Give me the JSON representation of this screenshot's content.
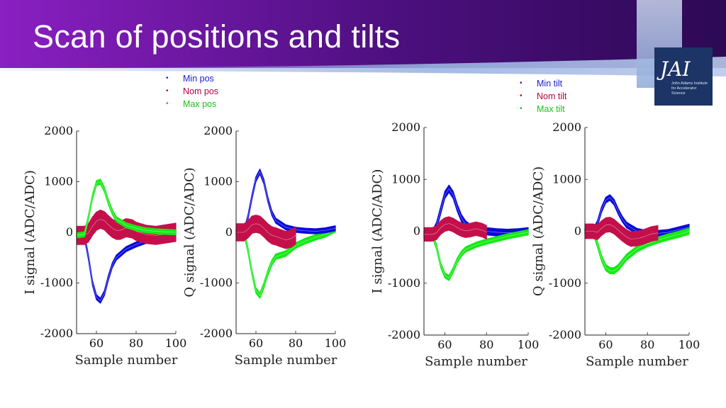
{
  "title": "Scan of positions and tilts",
  "logo": {
    "mark": "JAI",
    "text": "John Adams Institute for Accelerator Science"
  },
  "legends": {
    "positions": [
      {
        "label": "Min pos",
        "color": "#1a1ad6"
      },
      {
        "label": "Nom pos",
        "color": "#b00048"
      },
      {
        "label": "Max pos",
        "color": "#17c417"
      }
    ],
    "tilts": [
      {
        "label": "Min tilt",
        "color": "#1a1ad6"
      },
      {
        "label": "Nom tilt",
        "color": "#b00048"
      },
      {
        "label": "Max tilt",
        "color": "#17c417"
      }
    ]
  },
  "colors": {
    "min": "#0a0ad9",
    "nom": "#c4104a",
    "max": "#16ea16",
    "banner_start": "#3a0a6a",
    "banner_end": "#7a2aa0"
  },
  "chart_data": [
    {
      "type": "line",
      "xlabel": "Sample number",
      "ylabel": "I signal (ADC/ADC)",
      "xlim": [
        50,
        100
      ],
      "ylim": [
        -2000,
        2000
      ],
      "xticks": [
        "60",
        "80",
        "100"
      ],
      "yticks": [
        "2000",
        "1000",
        "0",
        "-1000",
        "-2000"
      ],
      "series": [
        {
          "name": "Min pos",
          "color": "#0a0ad9",
          "x": [
            50,
            54,
            56,
            58,
            60,
            62,
            64,
            66,
            68,
            70,
            75,
            80,
            85,
            90,
            95,
            100
          ],
          "y": [
            -60,
            -80,
            -500,
            -1000,
            -1280,
            -1350,
            -1200,
            -900,
            -650,
            -500,
            -330,
            -240,
            -170,
            -120,
            -70,
            0
          ],
          "spread": 50
        },
        {
          "name": "Nom pos",
          "color": "#c4104a",
          "x": [
            50,
            54,
            56,
            58,
            60,
            62,
            64,
            66,
            68,
            70,
            72,
            75,
            78,
            80,
            85,
            90,
            95,
            100
          ],
          "y": [
            -60,
            -60,
            -10,
            120,
            220,
            260,
            230,
            150,
            80,
            40,
            40,
            90,
            70,
            20,
            -40,
            -60,
            -30,
            0
          ],
          "spread": 180
        },
        {
          "name": "Max pos",
          "color": "#16ea16",
          "x": [
            50,
            54,
            56,
            58,
            60,
            62,
            64,
            66,
            68,
            70,
            75,
            80,
            85,
            90,
            95,
            100
          ],
          "y": [
            -60,
            -40,
            300,
            700,
            970,
            1000,
            850,
            600,
            400,
            260,
            140,
            80,
            40,
            20,
            10,
            0
          ],
          "spread": 50
        }
      ]
    },
    {
      "type": "line",
      "xlabel": "Sample number",
      "ylabel": "Q signal (ADC/ADC)",
      "xlim": [
        50,
        100
      ],
      "ylim": [
        -2000,
        2000
      ],
      "xticks": [
        "60",
        "80",
        "100"
      ],
      "yticks": [
        "2000",
        "1000",
        "0",
        "-1000",
        "-2000"
      ],
      "series": [
        {
          "name": "Max pos",
          "color": "#16ea16",
          "x": [
            50,
            54,
            56,
            58,
            60,
            62,
            64,
            66,
            68,
            70,
            75,
            80,
            85,
            90,
            95,
            100
          ],
          "y": [
            0,
            0,
            -350,
            -800,
            -1150,
            -1250,
            -1050,
            -800,
            -600,
            -480,
            -420,
            -260,
            -170,
            -100,
            -40,
            60
          ],
          "spread": 55
        },
        {
          "name": "Min pos",
          "color": "#0a0ad9",
          "x": [
            50,
            54,
            56,
            58,
            60,
            62,
            64,
            66,
            68,
            70,
            75,
            80,
            85,
            90,
            95,
            100
          ],
          "y": [
            0,
            0,
            300,
            700,
            1050,
            1200,
            1000,
            650,
            380,
            230,
            100,
            50,
            30,
            20,
            40,
            80
          ],
          "spread": 50
        },
        {
          "name": "Nom pos",
          "color": "#c4104a",
          "x": [
            50,
            54,
            56,
            58,
            60,
            62,
            64,
            66,
            68,
            70,
            72,
            75,
            78,
            80
          ],
          "y": [
            0,
            0,
            60,
            150,
            170,
            150,
            80,
            0,
            -60,
            -80,
            -110,
            -150,
            -120,
            -60
          ],
          "spread": 170
        }
      ]
    },
    {
      "type": "line",
      "xlabel": "Sample number",
      "ylabel": "I signal (ADC/ADC)",
      "xlim": [
        50,
        100
      ],
      "ylim": [
        -2000,
        2000
      ],
      "xticks": [
        "60",
        "80",
        "100"
      ],
      "yticks": [
        "2000",
        "1000",
        "0",
        "-1000",
        "-2000"
      ],
      "series": [
        {
          "name": "Min tilt",
          "color": "#0a0ad9",
          "x": [
            50,
            54,
            56,
            58,
            60,
            62,
            64,
            66,
            68,
            70,
            72,
            75,
            78,
            80,
            85,
            90,
            95,
            100
          ],
          "y": [
            -60,
            -60,
            100,
            400,
            700,
            820,
            700,
            450,
            250,
            130,
            70,
            60,
            30,
            0,
            -20,
            -30,
            -20,
            0
          ],
          "spread": 70
        },
        {
          "name": "Max tilt",
          "color": "#16ea16",
          "x": [
            50,
            54,
            56,
            58,
            60,
            62,
            64,
            66,
            68,
            70,
            75,
            80,
            85,
            90,
            95,
            100
          ],
          "y": [
            -60,
            -60,
            -300,
            -650,
            -850,
            -900,
            -750,
            -560,
            -430,
            -350,
            -260,
            -200,
            -150,
            -100,
            -60,
            -20
          ],
          "spread": 50
        },
        {
          "name": "Nom tilt",
          "color": "#c4104a",
          "x": [
            50,
            54,
            56,
            58,
            60,
            62,
            64,
            66,
            68,
            70,
            72,
            75,
            78,
            80
          ],
          "y": [
            -60,
            -60,
            -30,
            70,
            130,
            150,
            120,
            70,
            30,
            10,
            20,
            50,
            20,
            -20
          ],
          "spread": 130
        }
      ]
    },
    {
      "type": "line",
      "xlabel": "Sample number",
      "ylabel": "Q signal (ADC/ADC)",
      "xlim": [
        50,
        100
      ],
      "ylim": [
        -2000,
        2000
      ],
      "xticks": [
        "60",
        "80",
        "100"
      ],
      "yticks": [
        "2000",
        "1000",
        "0",
        "-1000",
        "-2000"
      ],
      "series": [
        {
          "name": "Min tilt",
          "color": "#0a0ad9",
          "x": [
            50,
            54,
            56,
            58,
            60,
            62,
            64,
            66,
            68,
            70,
            75,
            80,
            85,
            90,
            95,
            100
          ],
          "y": [
            0,
            0,
            150,
            420,
            600,
            650,
            560,
            380,
            230,
            120,
            0,
            -40,
            -40,
            -20,
            30,
            80
          ],
          "spread": 55
        },
        {
          "name": "Max tilt",
          "color": "#16ea16",
          "x": [
            50,
            54,
            56,
            58,
            60,
            62,
            64,
            66,
            68,
            70,
            75,
            80,
            85,
            90,
            95,
            100
          ],
          "y": [
            0,
            0,
            -250,
            -520,
            -700,
            -760,
            -760,
            -700,
            -600,
            -500,
            -340,
            -240,
            -170,
            -110,
            -60,
            0
          ],
          "spread": 60
        },
        {
          "name": "Nom tilt",
          "color": "#c4104a",
          "x": [
            50,
            54,
            56,
            58,
            60,
            62,
            64,
            66,
            68,
            70,
            72,
            75,
            78,
            80,
            82,
            85
          ],
          "y": [
            0,
            0,
            -20,
            60,
            120,
            130,
            90,
            20,
            -50,
            -110,
            -150,
            -140,
            -110,
            -80,
            -50,
            -30
          ],
          "spread": 140
        }
      ]
    }
  ]
}
